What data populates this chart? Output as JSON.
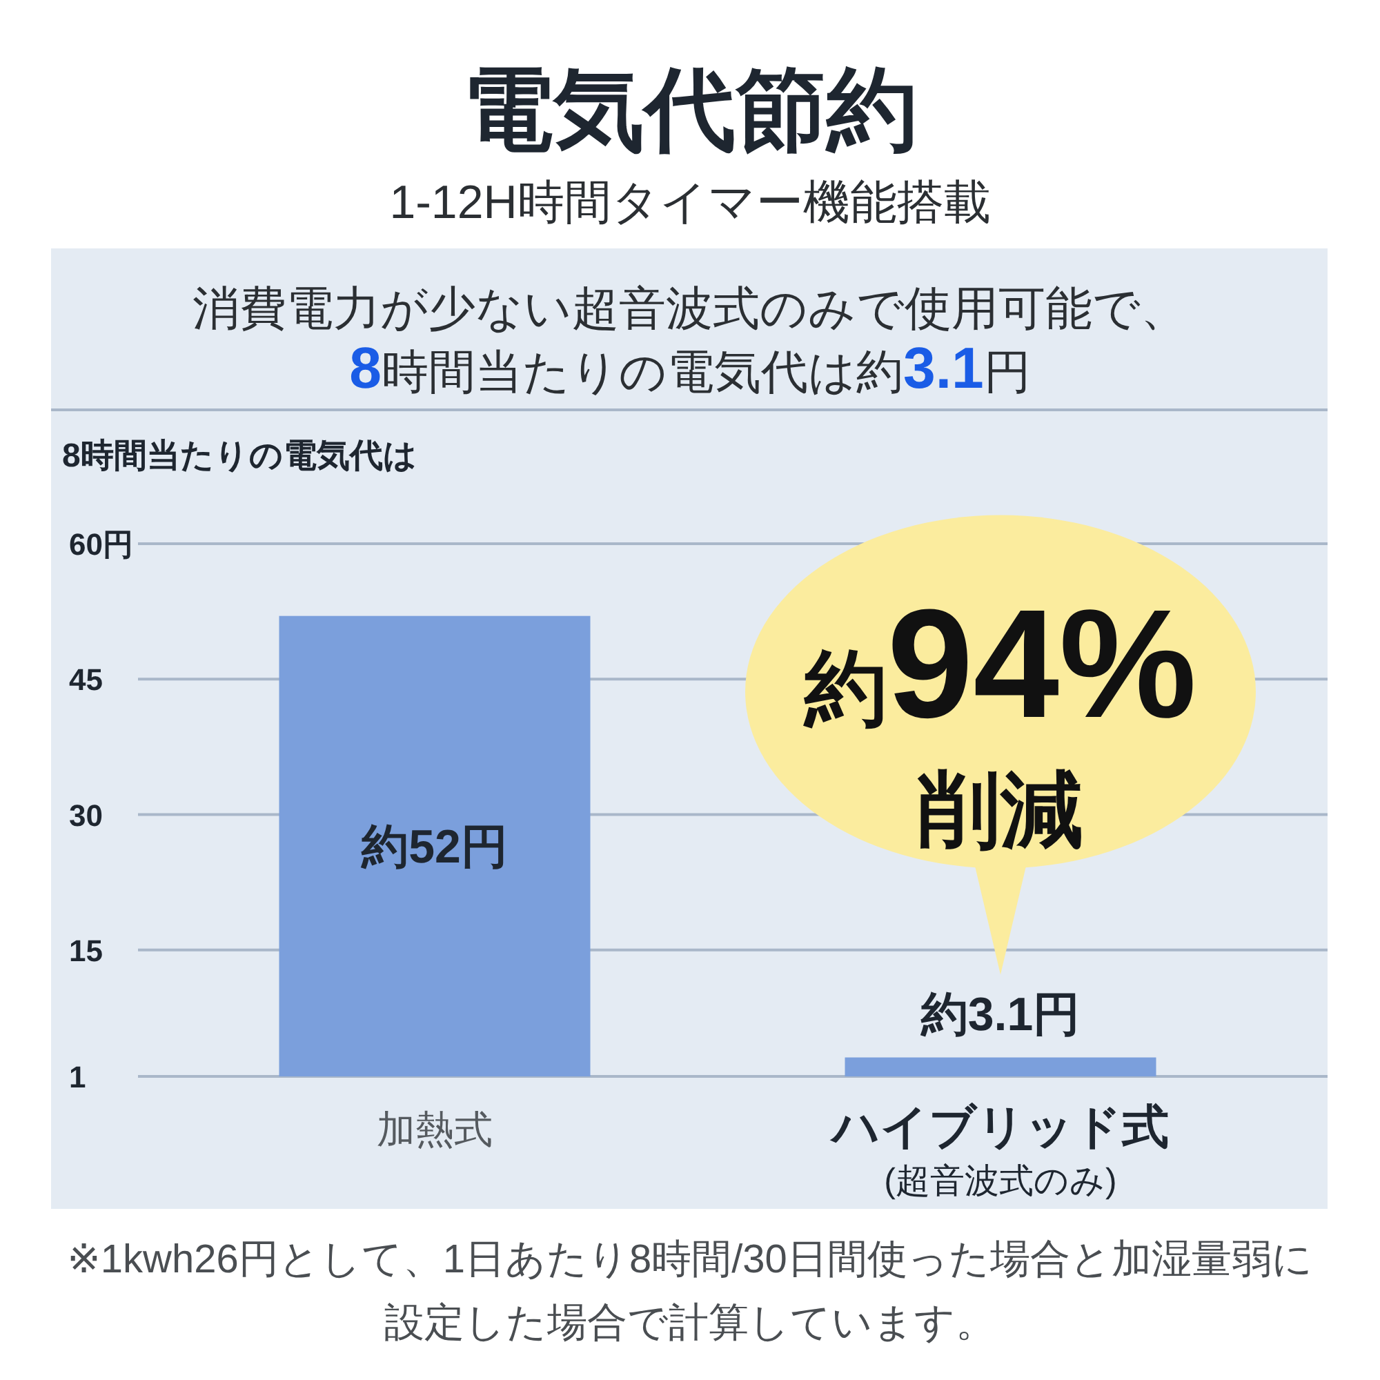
{
  "chart_data": {
    "type": "bar",
    "title": "電気代節約",
    "subtitle": "1-12H時間タイマー機能搭載",
    "ylabel": "8時間当たりの電気代は",
    "categories": [
      "加熱式",
      "ハイブリッド式\n(超音波式のみ)"
    ],
    "values": [
      52,
      3.1
    ],
    "color": "#7b9fdc",
    "value_labels": [
      "約52円",
      "約3.1円"
    ],
    "ylim": [
      1,
      60
    ],
    "yticks": [
      1,
      15,
      30,
      45,
      {
        "value": 60,
        "label": "60円"
      }
    ],
    "grid": "y",
    "annotations": [
      "消費電力が少ない超音波式のみで使用可能で、\n8時間当たりの電気代は約3.1円",
      {
        "text": "約94%\n削減",
        "x": "ハイブリッド式\n(超音波式のみ)",
        "y": 3.1
      },
      "※1kwh26円として、1日あたり8時間/30日間使った場合と加湿量弱に設定した場合で計算しています。"
    ]
  }
}
